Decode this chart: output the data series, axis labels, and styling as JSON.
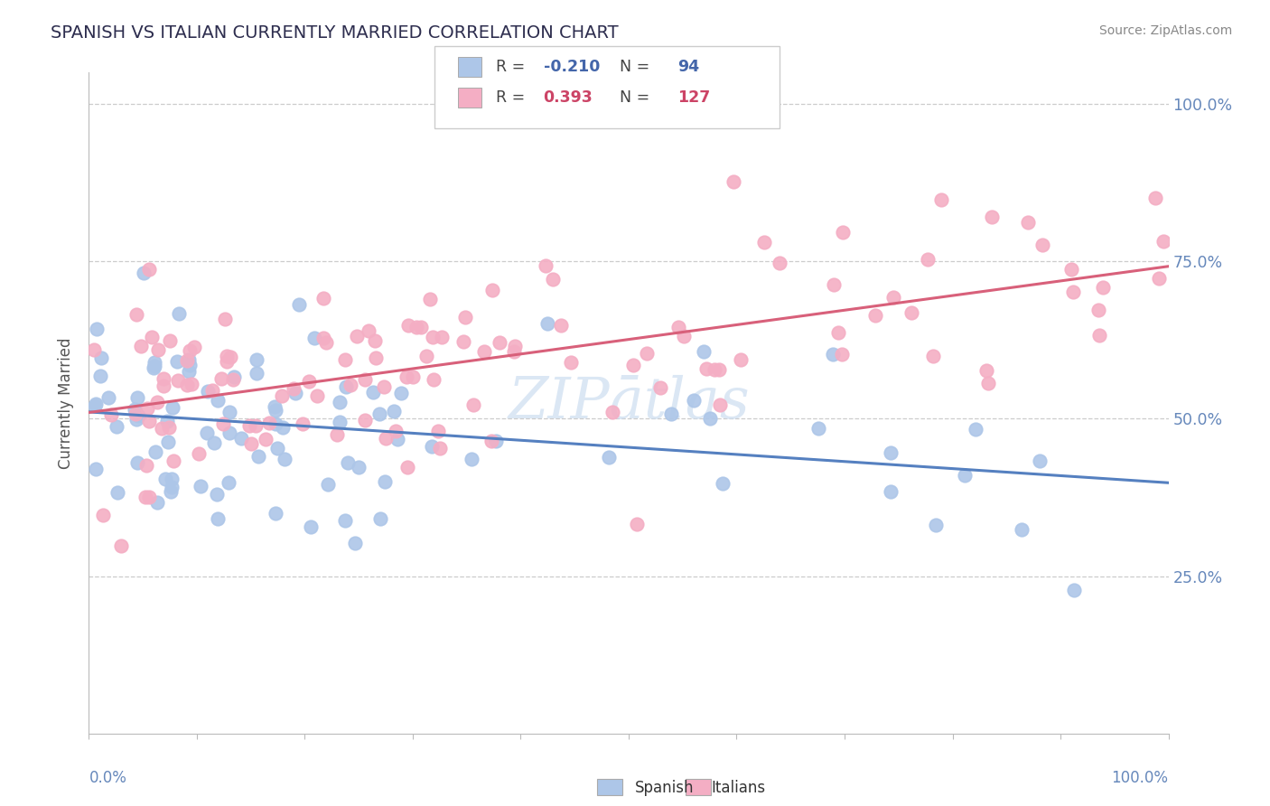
{
  "title": "SPANISH VS ITALIAN CURRENTLY MARRIED CORRELATION CHART",
  "source": "Source: ZipAtlas.com",
  "ylabel": "Currently Married",
  "ytick_labels": [
    "25.0%",
    "50.0%",
    "75.0%",
    "100.0%"
  ],
  "ytick_values": [
    0.25,
    0.5,
    0.75,
    1.0
  ],
  "xlim": [
    0.0,
    1.0
  ],
  "ylim": [
    0.0,
    1.05
  ],
  "spanish_R": -0.21,
  "spanish_N": 94,
  "italian_R": 0.393,
  "italian_N": 127,
  "spanish_color": "#adc6e8",
  "italian_color": "#f4aec4",
  "spanish_line_color": "#5580c0",
  "italian_line_color": "#d8607a",
  "title_color": "#2d2d4e",
  "source_color": "#888888",
  "background_color": "#ffffff",
  "grid_color": "#cccccc",
  "axis_label_color": "#6688bb",
  "watermark_color": "#ccddf0",
  "legend_r_color_sp": "#4466aa",
  "legend_r_color_it": "#cc4466",
  "legend_n_color_sp": "#4466aa",
  "legend_n_color_it": "#cc4466"
}
